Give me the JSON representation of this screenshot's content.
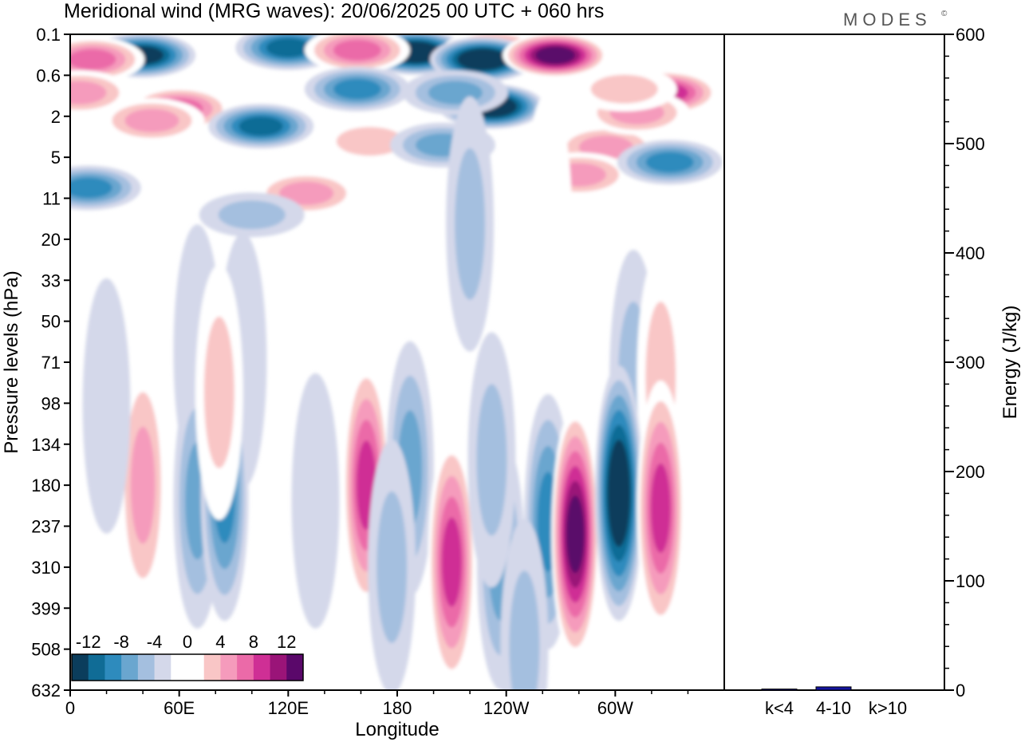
{
  "chart_data": [
    {
      "type": "heatmap",
      "title": "Meridional wind (MRG waves):  20/06/2025  00 UTC  + 060 hrs",
      "xlabel": "Longitude",
      "ylabel": "Pressure levels (hPa)",
      "x_ticks": [
        "0",
        "60E",
        "120E",
        "180",
        "120W",
        "60W"
      ],
      "y_ticks": [
        "0.1",
        "0.6",
        "2",
        "5",
        "11",
        "20",
        "33",
        "50",
        "71",
        "98",
        "134",
        "180",
        "237",
        "310",
        "399",
        "508",
        "632"
      ],
      "colorbar": {
        "labels": [
          "-12",
          "-8",
          "-4",
          "0",
          "4",
          "8",
          "12"
        ],
        "levels": [
          -14,
          -12,
          -10,
          -8,
          -6,
          -4,
          -2,
          2,
          4,
          6,
          8,
          10,
          12,
          14
        ],
        "colors": [
          "#0b3d5c",
          "#106c96",
          "#2e8bbd",
          "#6aa6cf",
          "#a4bfdf",
          "#d4d8ea",
          "#ffffff",
          "#ffffff",
          "#f9c6c6",
          "#f59bbc",
          "#eb6aa8",
          "#cf2f95",
          "#9a1478",
          "#5a086a"
        ]
      },
      "anomalies": [
        {
          "lon": 190,
          "p": 0.22,
          "v": -14
        },
        {
          "lon": 233,
          "p": 0.22,
          "v": 8
        },
        {
          "lon": 227,
          "p": 0.3,
          "v": -15
        },
        {
          "lon": 267,
          "p": 0.25,
          "v": 14
        },
        {
          "lon": 232,
          "p": 1.5,
          "v": -14
        },
        {
          "lon": 120,
          "p": 0.18,
          "v": -11
        },
        {
          "lon": 158,
          "p": 0.2,
          "v": 9
        },
        {
          "lon": 40,
          "p": 0.25,
          "v": -13
        },
        {
          "lon": 12,
          "p": 0.3,
          "v": 8
        },
        {
          "lon": 5,
          "p": 1.0,
          "v": 6
        },
        {
          "lon": 60,
          "p": 1.6,
          "v": 9
        },
        {
          "lon": 45,
          "p": 2.2,
          "v": 6
        },
        {
          "lon": 105,
          "p": 2.5,
          "v": -10
        },
        {
          "lon": 158,
          "p": 0.9,
          "v": -8
        },
        {
          "lon": 165,
          "p": 3.5,
          "v": 5
        },
        {
          "lon": 205,
          "p": 3.8,
          "v": -7
        },
        {
          "lon": 212,
          "p": 1.0,
          "v": -7
        },
        {
          "lon": 295,
          "p": 4.0,
          "v": 6
        },
        {
          "lon": 280,
          "p": 7.0,
          "v": 6
        },
        {
          "lon": 328,
          "p": 1.0,
          "v": 11
        },
        {
          "lon": 312,
          "p": 1.8,
          "v": 7
        },
        {
          "lon": 305,
          "p": 0.9,
          "v": 5
        },
        {
          "lon": 330,
          "p": 5.5,
          "v": -8
        },
        {
          "lon": 10,
          "p": 9.0,
          "v": -8
        },
        {
          "lon": 130,
          "p": 10.0,
          "v": 6
        },
        {
          "lon": 100,
          "p": 14.0,
          "v": -4
        },
        {
          "lon": 220,
          "p": 16.0,
          "v": -4
        },
        {
          "lon": 263,
          "p": 15.0,
          "v": 3
        },
        {
          "lon": 255,
          "p": 40.0,
          "v": 3
        },
        {
          "lon": 30,
          "p": 60.0,
          "v": 3
        },
        {
          "lon": 70,
          "p": 65.0,
          "v": -3
        },
        {
          "lon": 95,
          "p": 70.0,
          "v": -3
        },
        {
          "lon": 310,
          "p": 80.0,
          "v": -5
        },
        {
          "lon": 325,
          "p": 80.0,
          "v": 4
        },
        {
          "lon": 40,
          "p": 180.0,
          "v": 7
        },
        {
          "lon": 70,
          "p": 200.0,
          "v": -6
        },
        {
          "lon": 85,
          "p": 190.0,
          "v": -8
        },
        {
          "lon": 82,
          "p": 90.0,
          "v": 5
        },
        {
          "lon": 20,
          "p": 100.0,
          "v": -3
        },
        {
          "lon": 135,
          "p": 200.0,
          "v": -3
        },
        {
          "lon": 163,
          "p": 180.0,
          "v": 11
        },
        {
          "lon": 187,
          "p": 160.0,
          "v": -6
        },
        {
          "lon": 177,
          "p": 310.0,
          "v": -4
        },
        {
          "lon": 210,
          "p": 300.0,
          "v": 10
        },
        {
          "lon": 237,
          "p": 300.0,
          "v": -7
        },
        {
          "lon": 232,
          "p": 150.0,
          "v": -4
        },
        {
          "lon": 263,
          "p": 230.0,
          "v": -8
        },
        {
          "lon": 278,
          "p": 250.0,
          "v": 15
        },
        {
          "lon": 302,
          "p": 190.0,
          "v": -15
        },
        {
          "lon": 325,
          "p": 210.0,
          "v": 10
        },
        {
          "lon": 250,
          "p": 500.0,
          "v": -4
        }
      ]
    },
    {
      "type": "bar",
      "categories": [
        "k<4",
        "4-10",
        "k>10"
      ],
      "values": [
        1,
        3,
        0
      ],
      "ylabel": "Energy (J/kg)",
      "ylim": [
        0,
        600
      ],
      "y_ticks": [
        "0",
        "100",
        "200",
        "300",
        "400",
        "500",
        "600"
      ]
    }
  ],
  "brand": "MODES",
  "brand_mark": "©",
  "colors": {
    "bar": "#1414a0",
    "frame": "#000000"
  }
}
